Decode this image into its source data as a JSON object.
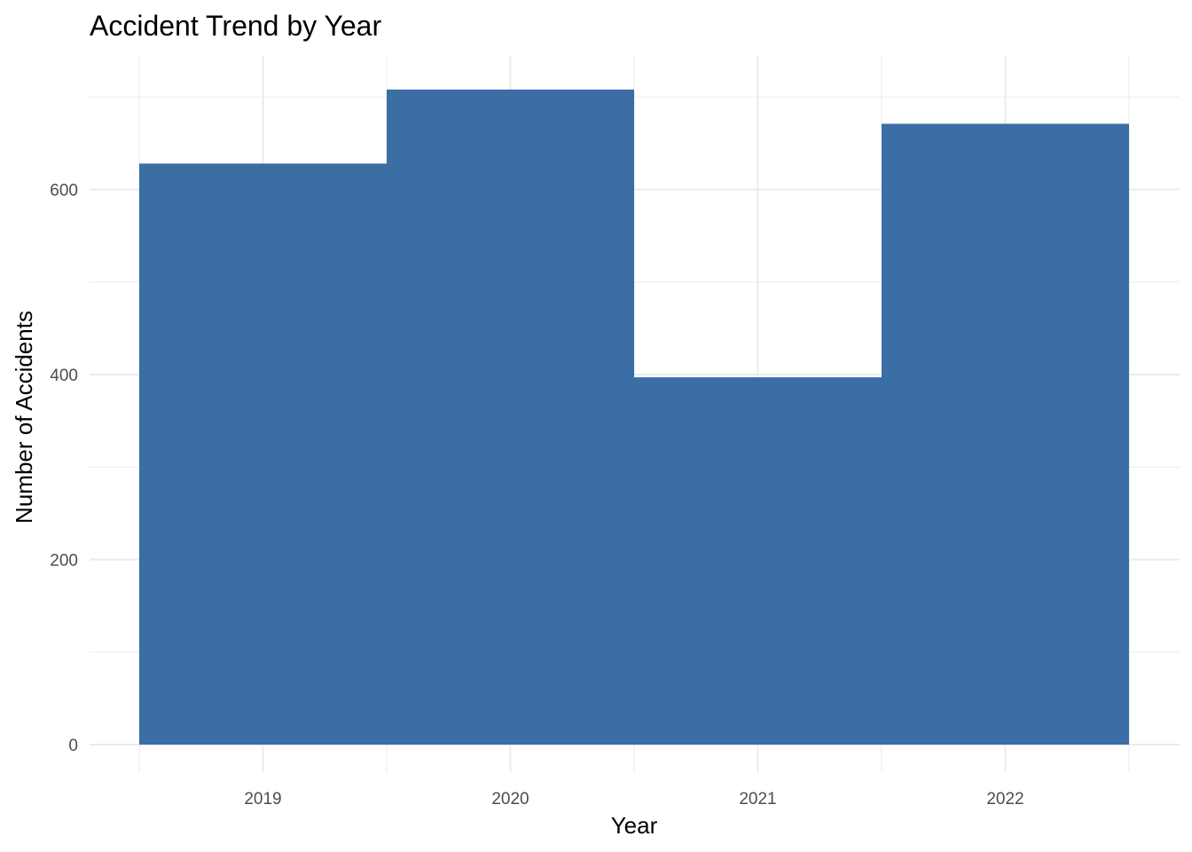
{
  "chart_data": {
    "type": "bar",
    "title": "Accident Trend by Year",
    "xlabel": "Year",
    "ylabel": "Number of Accidents",
    "categories": [
      "2019",
      "2020",
      "2021",
      "2022"
    ],
    "values": [
      628,
      708,
      397,
      671
    ],
    "ylim": [
      -30,
      745
    ],
    "yticks": [
      0,
      200,
      400,
      600
    ],
    "yticks_minor": [
      100,
      300,
      500,
      700
    ],
    "grid": true,
    "legend": "none",
    "bar_color": "#3A6EA5",
    "grid_color": "#EBEBEB"
  }
}
